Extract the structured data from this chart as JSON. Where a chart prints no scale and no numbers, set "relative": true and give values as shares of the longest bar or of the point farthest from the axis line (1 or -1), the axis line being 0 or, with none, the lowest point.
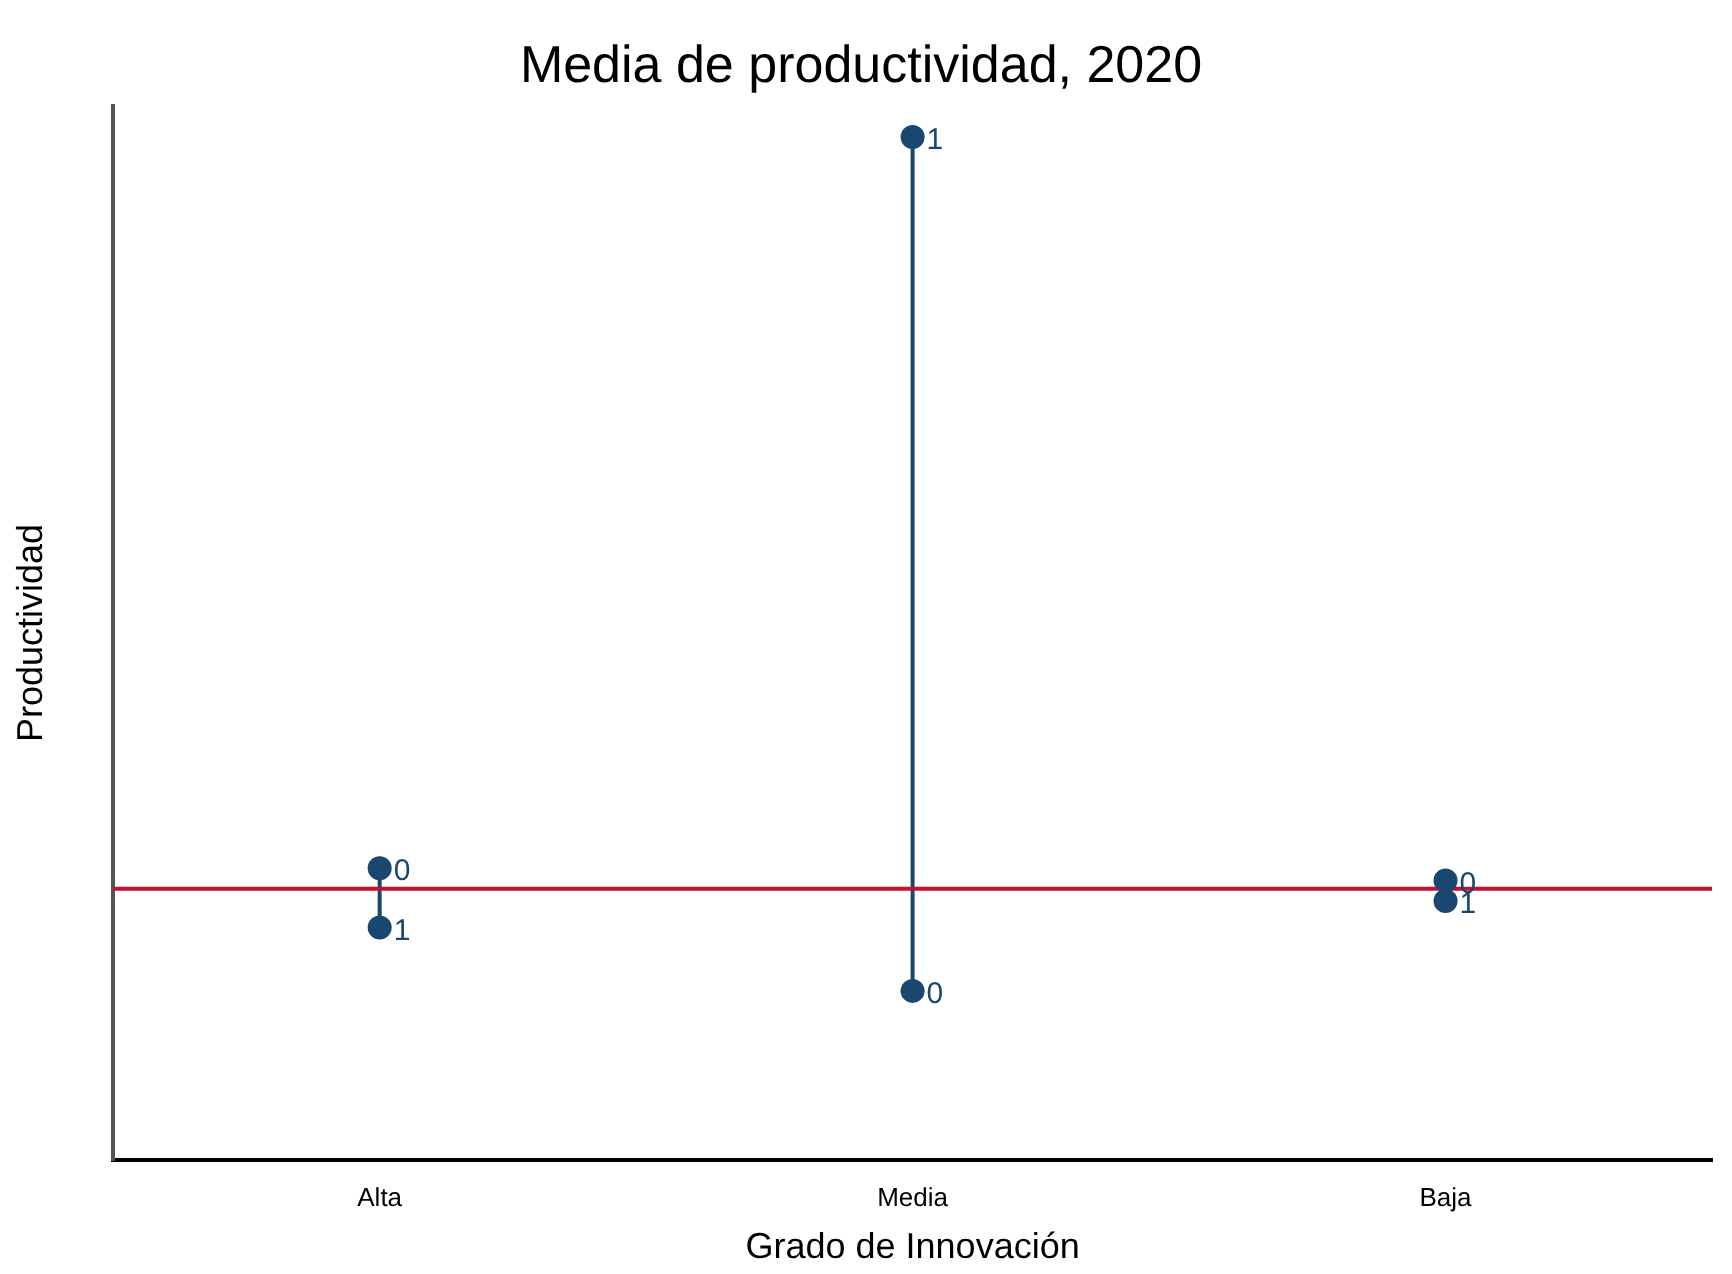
{
  "chart_data": {
    "type": "scatter",
    "title": "Media de productividad, 2020",
    "xlabel": "Grado de Innovación",
    "ylabel": "Productividad",
    "relative": true,
    "categories": [
      "Alta",
      "Media",
      "Baja"
    ],
    "series": [
      {
        "name": "0",
        "color": "#1a476f",
        "values": [
          0.285,
          0.165,
          0.273
        ]
      },
      {
        "name": "1",
        "color": "#1a476f",
        "values": [
          0.227,
          1,
          0.253
        ]
      }
    ],
    "ref_lines": [
      {
        "axis": "y",
        "value": 0.265,
        "color": "#c8102e"
      }
    ],
    "marker": "circle",
    "legend": false,
    "grid": false
  }
}
